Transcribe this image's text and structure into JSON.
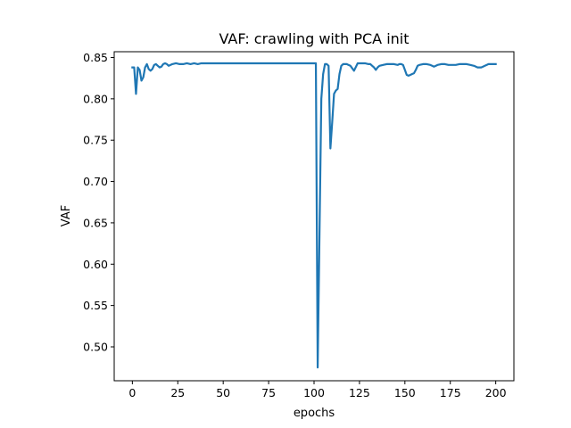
{
  "chart_data": {
    "type": "line",
    "title": "VAF: crawling with PCA init",
    "xlabel": "epochs",
    "ylabel": "VAF",
    "xlim": [
      -10,
      210
    ],
    "ylim": [
      0.459,
      0.857
    ],
    "xticks": [
      0,
      25,
      50,
      75,
      100,
      125,
      150,
      175,
      200
    ],
    "yticks": [
      0.5,
      0.55,
      0.6,
      0.65,
      0.7,
      0.75,
      0.8,
      0.85
    ],
    "ytick_labels": [
      "0.50",
      "0.55",
      "0.60",
      "0.65",
      "0.70",
      "0.75",
      "0.80",
      "0.85"
    ],
    "grid": false,
    "series": [
      {
        "color": "#1f77b4",
        "x": [
          0,
          1,
          2,
          3,
          4,
          5,
          6,
          7,
          8,
          9,
          10,
          11,
          12,
          13,
          14,
          15,
          16,
          17,
          18,
          19,
          20,
          22,
          24,
          26,
          28,
          30,
          32,
          34,
          36,
          38,
          40,
          50,
          60,
          70,
          80,
          90,
          100,
          101,
          102,
          104,
          105,
          106,
          107,
          108,
          109,
          110,
          111,
          112,
          113,
          114,
          115,
          116,
          117,
          118,
          119,
          120,
          121,
          122,
          124,
          126,
          128,
          130,
          131,
          132,
          133,
          134,
          135,
          136,
          138,
          140,
          142,
          144,
          146,
          147,
          148,
          149,
          150,
          151,
          152,
          153,
          154,
          155,
          156,
          157,
          158,
          160,
          162,
          164,
          165,
          166,
          168,
          170,
          172,
          174,
          176,
          178,
          180,
          182,
          184,
          186,
          188,
          190,
          191,
          192,
          193,
          194,
          195,
          196,
          198,
          200
        ],
        "y": [
          0.838,
          0.838,
          0.806,
          0.838,
          0.835,
          0.822,
          0.826,
          0.838,
          0.842,
          0.836,
          0.834,
          0.836,
          0.841,
          0.842,
          0.84,
          0.838,
          0.839,
          0.842,
          0.843,
          0.842,
          0.84,
          0.842,
          0.843,
          0.842,
          0.842,
          0.843,
          0.842,
          0.843,
          0.842,
          0.843,
          0.843,
          0.843,
          0.843,
          0.843,
          0.843,
          0.843,
          0.843,
          0.843,
          0.475,
          0.8,
          0.83,
          0.842,
          0.842,
          0.84,
          0.74,
          0.772,
          0.806,
          0.81,
          0.812,
          0.83,
          0.84,
          0.842,
          0.842,
          0.842,
          0.841,
          0.84,
          0.837,
          0.834,
          0.843,
          0.843,
          0.843,
          0.842,
          0.842,
          0.84,
          0.838,
          0.835,
          0.838,
          0.84,
          0.841,
          0.842,
          0.842,
          0.842,
          0.841,
          0.842,
          0.842,
          0.841,
          0.835,
          0.829,
          0.828,
          0.829,
          0.83,
          0.831,
          0.835,
          0.84,
          0.841,
          0.842,
          0.842,
          0.841,
          0.84,
          0.839,
          0.841,
          0.842,
          0.842,
          0.841,
          0.841,
          0.841,
          0.842,
          0.842,
          0.842,
          0.841,
          0.84,
          0.838,
          0.838,
          0.838,
          0.839,
          0.84,
          0.841,
          0.842,
          0.842,
          0.842
        ]
      }
    ]
  }
}
